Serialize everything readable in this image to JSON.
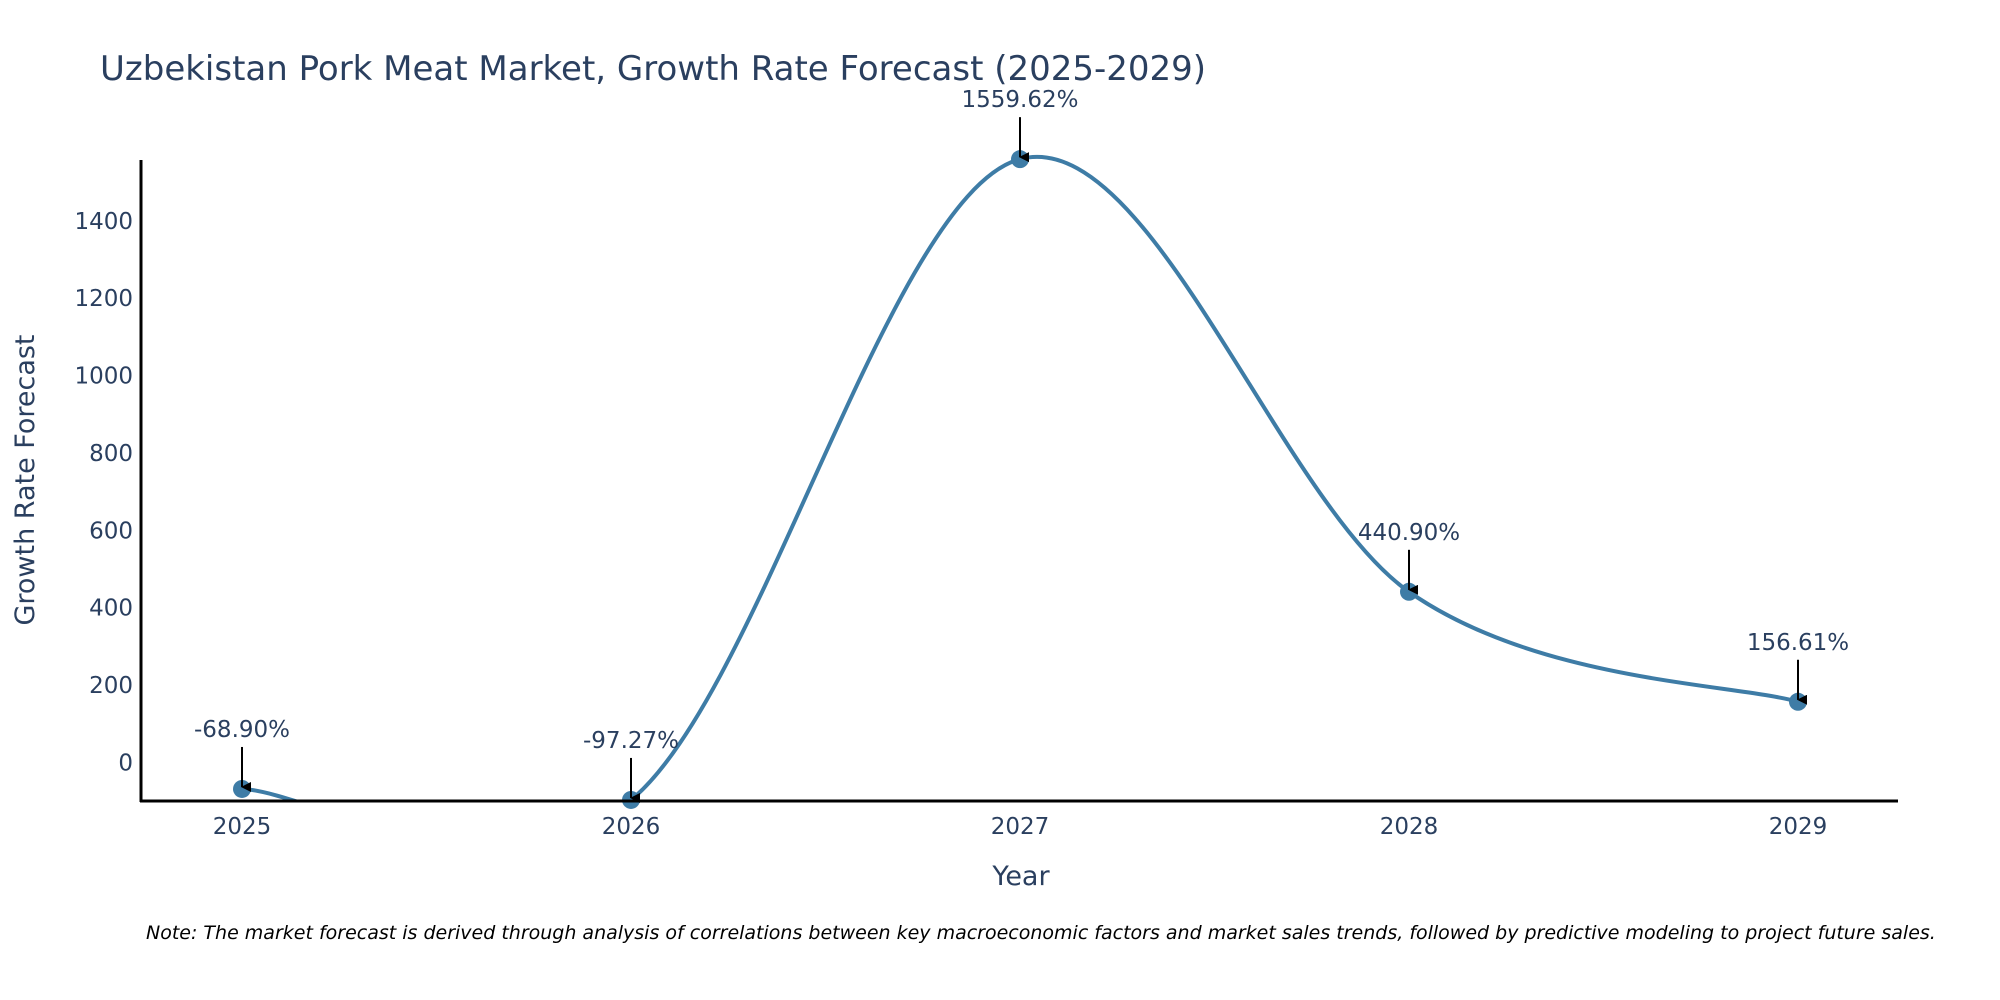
{
  "chart_data": {
    "type": "line",
    "title": "Uzbekistan Pork Meat Market, Growth Rate Forecast (2025-2029)",
    "xlabel": "Year",
    "ylabel": "Growth Rate Forecast",
    "categories": [
      "2025",
      "2026",
      "2027",
      "2028",
      "2029"
    ],
    "series": [
      {
        "values": [
          -68.9,
          -97.27,
          1559.62,
          440.9,
          156.61
        ],
        "labels": [
          "-68.90%",
          "-97.27%",
          "1559.62%",
          "440.90%",
          "156.61%"
        ]
      }
    ],
    "yticks": [
      0,
      200,
      400,
      600,
      800,
      1000,
      1200,
      1400
    ],
    "ytick_labels": [
      "0",
      "200",
      "400",
      "600",
      "800",
      "1000",
      "1200",
      "1400"
    ],
    "ylim": [
      -100,
      1560
    ],
    "grid": false,
    "line_color": "#3e7ca6",
    "marker_color": "#3e7ca6",
    "annotation_arrow_color": "#000000",
    "note": "Note: The market forecast is derived through analysis of correlations between key macroeconomic factors and market sales trends, followed by predictive modeling to project future sales."
  }
}
